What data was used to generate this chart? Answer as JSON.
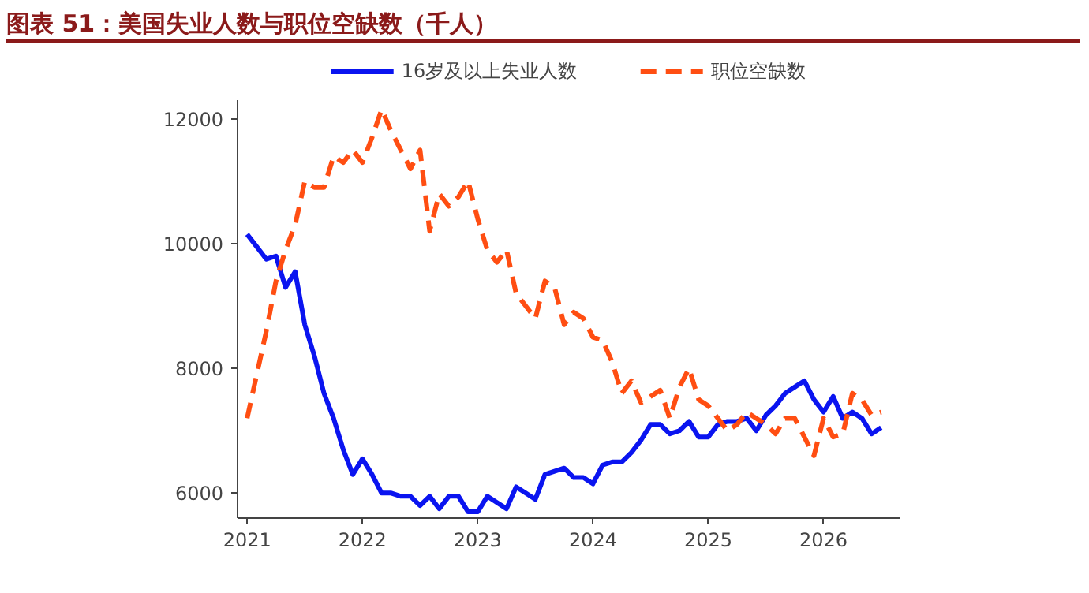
{
  "chart_data": {
    "type": "line",
    "title": "图表 51：美国失业人数与职位空缺数（千人）",
    "x": [
      "2021-01",
      "2021-02",
      "2021-03",
      "2021-04",
      "2021-05",
      "2021-06",
      "2021-07",
      "2021-08",
      "2021-09",
      "2021-10",
      "2021-11",
      "2021-12",
      "2022-01",
      "2022-02",
      "2022-03",
      "2022-04",
      "2022-05",
      "2022-06",
      "2022-07",
      "2022-08",
      "2022-09",
      "2022-10",
      "2022-11",
      "2022-12",
      "2023-01",
      "2023-02",
      "2023-03",
      "2023-04",
      "2023-05",
      "2023-06",
      "2023-07",
      "2023-08",
      "2023-09",
      "2023-10",
      "2023-11",
      "2023-12",
      "2024-01",
      "2024-02",
      "2024-03",
      "2024-04",
      "2024-05",
      "2024-06",
      "2024-07",
      "2024-08",
      "2024-09",
      "2024-10",
      "2024-11",
      "2024-12",
      "2025-01",
      "2025-02",
      "2025-03",
      "2025-04",
      "2025-05",
      "2025-06",
      "2025-07",
      "2025-08",
      "2025-09",
      "2025-10",
      "2025-11",
      "2025-12",
      "2026-01",
      "2026-02",
      "2026-03",
      "2026-04",
      "2026-05",
      "2026-06",
      "2026-07"
    ],
    "series": [
      {
        "name": "16岁及以上失业人数",
        "color": "#0a14f0",
        "line_style": "solid",
        "values": [
          10150,
          9950,
          9750,
          9800,
          9300,
          9550,
          8700,
          8200,
          7600,
          7200,
          6700,
          6300,
          6550,
          6300,
          6000,
          6000,
          5950,
          5950,
          5800,
          5950,
          5750,
          5950,
          5950,
          5700,
          5700,
          5950,
          5850,
          5750,
          6100,
          6000,
          5900,
          6300,
          6350,
          6400,
          6250,
          6250,
          6150,
          6450,
          6500,
          6500,
          6650,
          6850,
          7100,
          7100,
          6950,
          7000,
          7150,
          6900,
          6900,
          7100,
          7150,
          7150,
          7200,
          7000,
          7250,
          7400,
          7600,
          7700,
          7800,
          7500,
          7300,
          7550,
          7200,
          7300,
          7200,
          6950,
          7050
        ]
      },
      {
        "name": "职位空缺数",
        "color": "#ff4e12",
        "line_style": "dashed",
        "values": [
          7200,
          7900,
          8600,
          9400,
          9900,
          10300,
          11000,
          10900,
          10900,
          11400,
          11300,
          11500,
          11300,
          11700,
          12150,
          11800,
          11500,
          11200,
          11500,
          10200,
          10800,
          10600,
          10750,
          11000,
          10400,
          9900,
          9700,
          9900,
          9200,
          9000,
          8800,
          9400,
          9300,
          8700,
          8900,
          8800,
          8500,
          8450,
          8100,
          7600,
          7800,
          7450,
          7550,
          7650,
          7200,
          7700,
          8000,
          7500,
          7400,
          7200,
          7000,
          7100,
          7300,
          7200,
          7100,
          6950,
          7200,
          7200,
          6900,
          6600,
          7200,
          6900,
          6950,
          7600,
          7500,
          7250,
          7300
        ]
      }
    ],
    "xlim": [
      "2020-12",
      "2026-09"
    ],
    "xticks": [
      "2021",
      "2022",
      "2023",
      "2024",
      "2025",
      "2026"
    ],
    "ylim": [
      5600,
      12300
    ],
    "yticks": [
      6000,
      8000,
      10000,
      12000
    ],
    "grid": false,
    "legend": "top"
  }
}
